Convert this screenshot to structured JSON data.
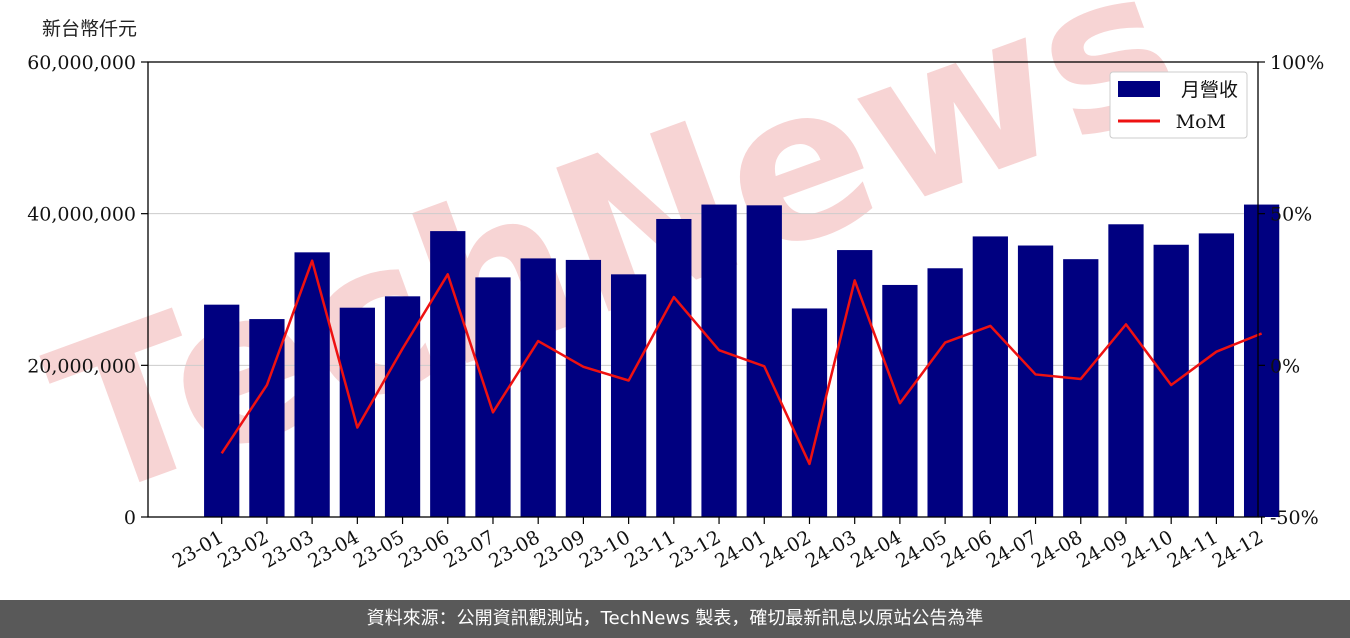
{
  "unit_label": "新台幣仟元",
  "footer_text": "資料來源：公開資訊觀測站，TechNews 製表，確切最新訊息以原站公告為準",
  "watermark": "TechNews",
  "colors": {
    "bar": "#000080",
    "line": "#ee1111",
    "grid": "#cccccc",
    "watermark": "#f7d4d4"
  },
  "chart_data": {
    "type": "bar",
    "title": "",
    "categories": [
      "23-01",
      "23-02",
      "23-03",
      "23-04",
      "23-05",
      "23-06",
      "23-07",
      "23-08",
      "23-09",
      "23-10",
      "23-11",
      "23-12",
      "24-01",
      "24-02",
      "24-03",
      "24-04",
      "24-05",
      "24-06",
      "24-07",
      "24-08",
      "24-09",
      "24-10",
      "24-11",
      "24-12"
    ],
    "series": [
      {
        "name": "月營收",
        "type": "bar",
        "axis": "left",
        "values": [
          28000000,
          26100000,
          34900000,
          27600000,
          29100000,
          37700000,
          31600000,
          34100000,
          33900000,
          32000000,
          39300000,
          41200000,
          41100000,
          27500000,
          35200000,
          30600000,
          32800000,
          37000000,
          35800000,
          34000000,
          38600000,
          35900000,
          37400000,
          41200000
        ]
      },
      {
        "name": "MoM",
        "type": "line",
        "axis": "right",
        "values": [
          -29,
          -6.5,
          34.5,
          -20.5,
          5.5,
          30,
          -15.5,
          8,
          -0.5,
          -5,
          22.5,
          5,
          -0.3,
          -32.5,
          28,
          -12.5,
          7.5,
          13,
          -3,
          -4.5,
          13.5,
          -6.5,
          4.5,
          10.5
        ]
      }
    ],
    "y_left": {
      "min": 0,
      "max": 60000000,
      "ticks": [
        0,
        20000000,
        40000000,
        60000000
      ],
      "tick_labels": [
        "0",
        "20,000,000",
        "40,000,000",
        "60,000,000"
      ]
    },
    "y_right": {
      "min": -50,
      "max": 100,
      "ticks": [
        -50,
        0,
        50,
        100
      ],
      "tick_labels": [
        "-50%",
        "0%",
        "50%",
        "100%"
      ]
    },
    "grid": true,
    "legend_position": "top-right"
  }
}
